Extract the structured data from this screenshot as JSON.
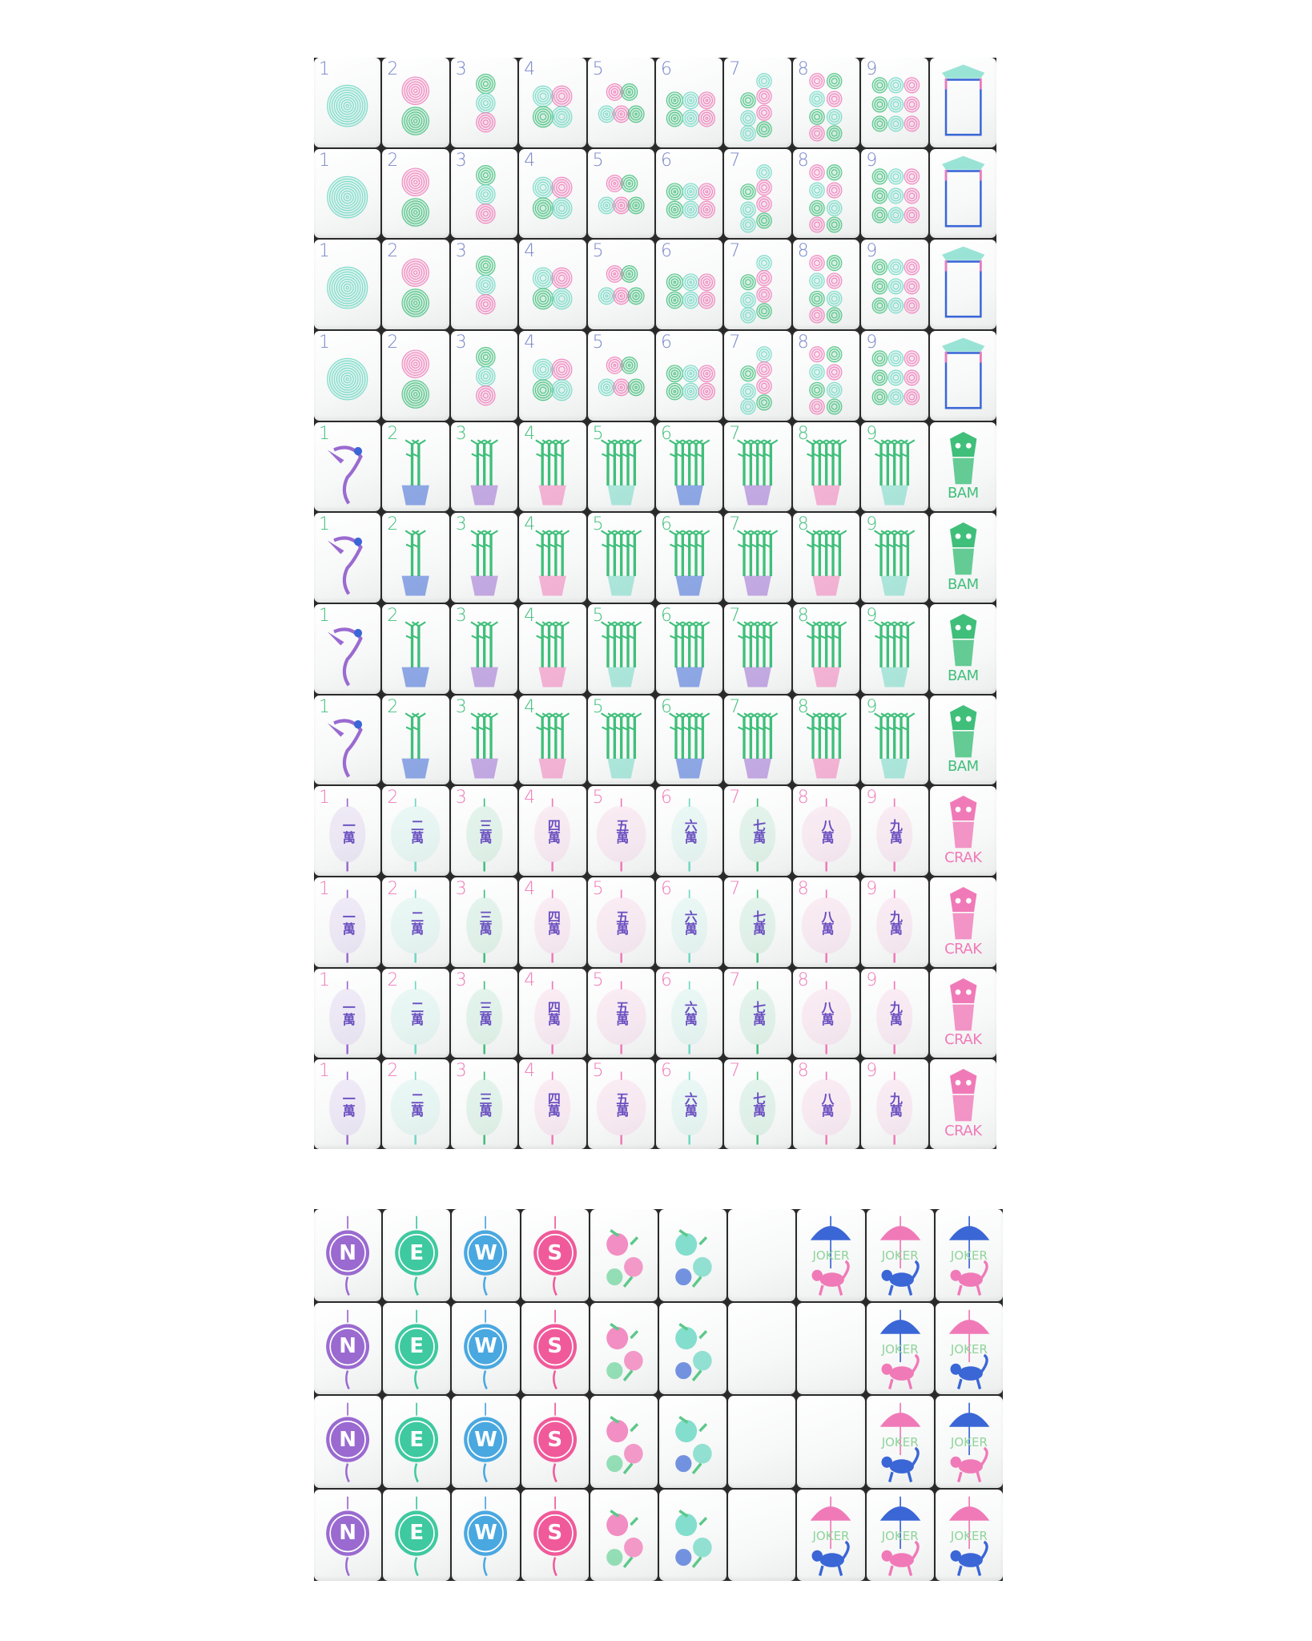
{
  "colors": {
    "green": "#3fbf7a",
    "mint": "#6fd8c4",
    "pink": "#f07ab8",
    "blue": "#3a66d6",
    "purple": "#9a6ad0",
    "numeral": "#7a86c8",
    "jokertext": "#8fd49a"
  },
  "top_rows": [
    {
      "suit": "dot",
      "labels": [
        "1",
        "2",
        "3",
        "4",
        "5",
        "6",
        "7",
        "8",
        "9"
      ],
      "dragon": {
        "type": "soap",
        "text": ""
      }
    },
    {
      "suit": "dot",
      "labels": [
        "1",
        "2",
        "3",
        "4",
        "5",
        "6",
        "7",
        "8",
        "9"
      ],
      "dragon": {
        "type": "soap",
        "text": ""
      }
    },
    {
      "suit": "dot",
      "labels": [
        "1",
        "2",
        "3",
        "4",
        "5",
        "6",
        "7",
        "8",
        "9"
      ],
      "dragon": {
        "type": "soap",
        "text": ""
      }
    },
    {
      "suit": "dot",
      "labels": [
        "1",
        "2",
        "3",
        "4",
        "5",
        "6",
        "7",
        "8",
        "9"
      ],
      "dragon": {
        "type": "soap",
        "text": ""
      }
    },
    {
      "suit": "bam",
      "labels": [
        "1",
        "2",
        "3",
        "4",
        "5",
        "6",
        "7",
        "8",
        "9"
      ],
      "dragon": {
        "type": "green",
        "text": "BAM"
      }
    },
    {
      "suit": "bam",
      "labels": [
        "1",
        "2",
        "3",
        "4",
        "5",
        "6",
        "7",
        "8",
        "9"
      ],
      "dragon": {
        "type": "green",
        "text": "BAM"
      }
    },
    {
      "suit": "bam",
      "labels": [
        "1",
        "2",
        "3",
        "4",
        "5",
        "6",
        "7",
        "8",
        "9"
      ],
      "dragon": {
        "type": "green",
        "text": "BAM"
      }
    },
    {
      "suit": "bam",
      "labels": [
        "1",
        "2",
        "3",
        "4",
        "5",
        "6",
        "7",
        "8",
        "9"
      ],
      "dragon": {
        "type": "green",
        "text": "BAM"
      }
    },
    {
      "suit": "crak",
      "labels": [
        "1",
        "2",
        "3",
        "4",
        "5",
        "6",
        "7",
        "8",
        "9"
      ],
      "dragon": {
        "type": "red",
        "text": "CRAK"
      }
    },
    {
      "suit": "crak",
      "labels": [
        "1",
        "2",
        "3",
        "4",
        "5",
        "6",
        "7",
        "8",
        "9"
      ],
      "dragon": {
        "type": "red",
        "text": "CRAK"
      }
    },
    {
      "suit": "crak",
      "labels": [
        "1",
        "2",
        "3",
        "4",
        "5",
        "6",
        "7",
        "8",
        "9"
      ],
      "dragon": {
        "type": "red",
        "text": "CRAK"
      }
    },
    {
      "suit": "crak",
      "labels": [
        "1",
        "2",
        "3",
        "4",
        "5",
        "6",
        "7",
        "8",
        "9"
      ],
      "dragon": {
        "type": "red",
        "text": "CRAK"
      }
    }
  ],
  "crak_characters": [
    "一萬",
    "二萬",
    "三萬",
    "四萬",
    "五萬",
    "六萬",
    "七萬",
    "八萬",
    "九萬"
  ],
  "winds": [
    {
      "letter": "N",
      "color": "#9a6ad0"
    },
    {
      "letter": "E",
      "color": "#3fc9a0"
    },
    {
      "letter": "W",
      "color": "#4aa8e0"
    },
    {
      "letter": "S",
      "color": "#f05a9a"
    }
  ],
  "joker_label": "JOKER",
  "bottom_rows": [
    [
      "wind:0",
      "wind:1",
      "wind:2",
      "wind:3",
      "flower:pink",
      "flower:blue",
      "blank",
      "joker:blue",
      "joker:pink",
      "joker:blue"
    ],
    [
      "wind:0",
      "wind:1",
      "wind:2",
      "wind:3",
      "flower:pink",
      "flower:blue",
      "blank",
      "blank",
      "joker:blue",
      "joker:pink"
    ],
    [
      "wind:0",
      "wind:1",
      "wind:2",
      "wind:3",
      "flower:pink",
      "flower:blue",
      "blank",
      "blank",
      "joker:pink",
      "joker:blue"
    ],
    [
      "wind:0",
      "wind:1",
      "wind:2",
      "wind:3",
      "flower:pink",
      "flower:blue",
      "blank",
      "joker:pink",
      "joker:blue",
      "joker:pink"
    ]
  ]
}
